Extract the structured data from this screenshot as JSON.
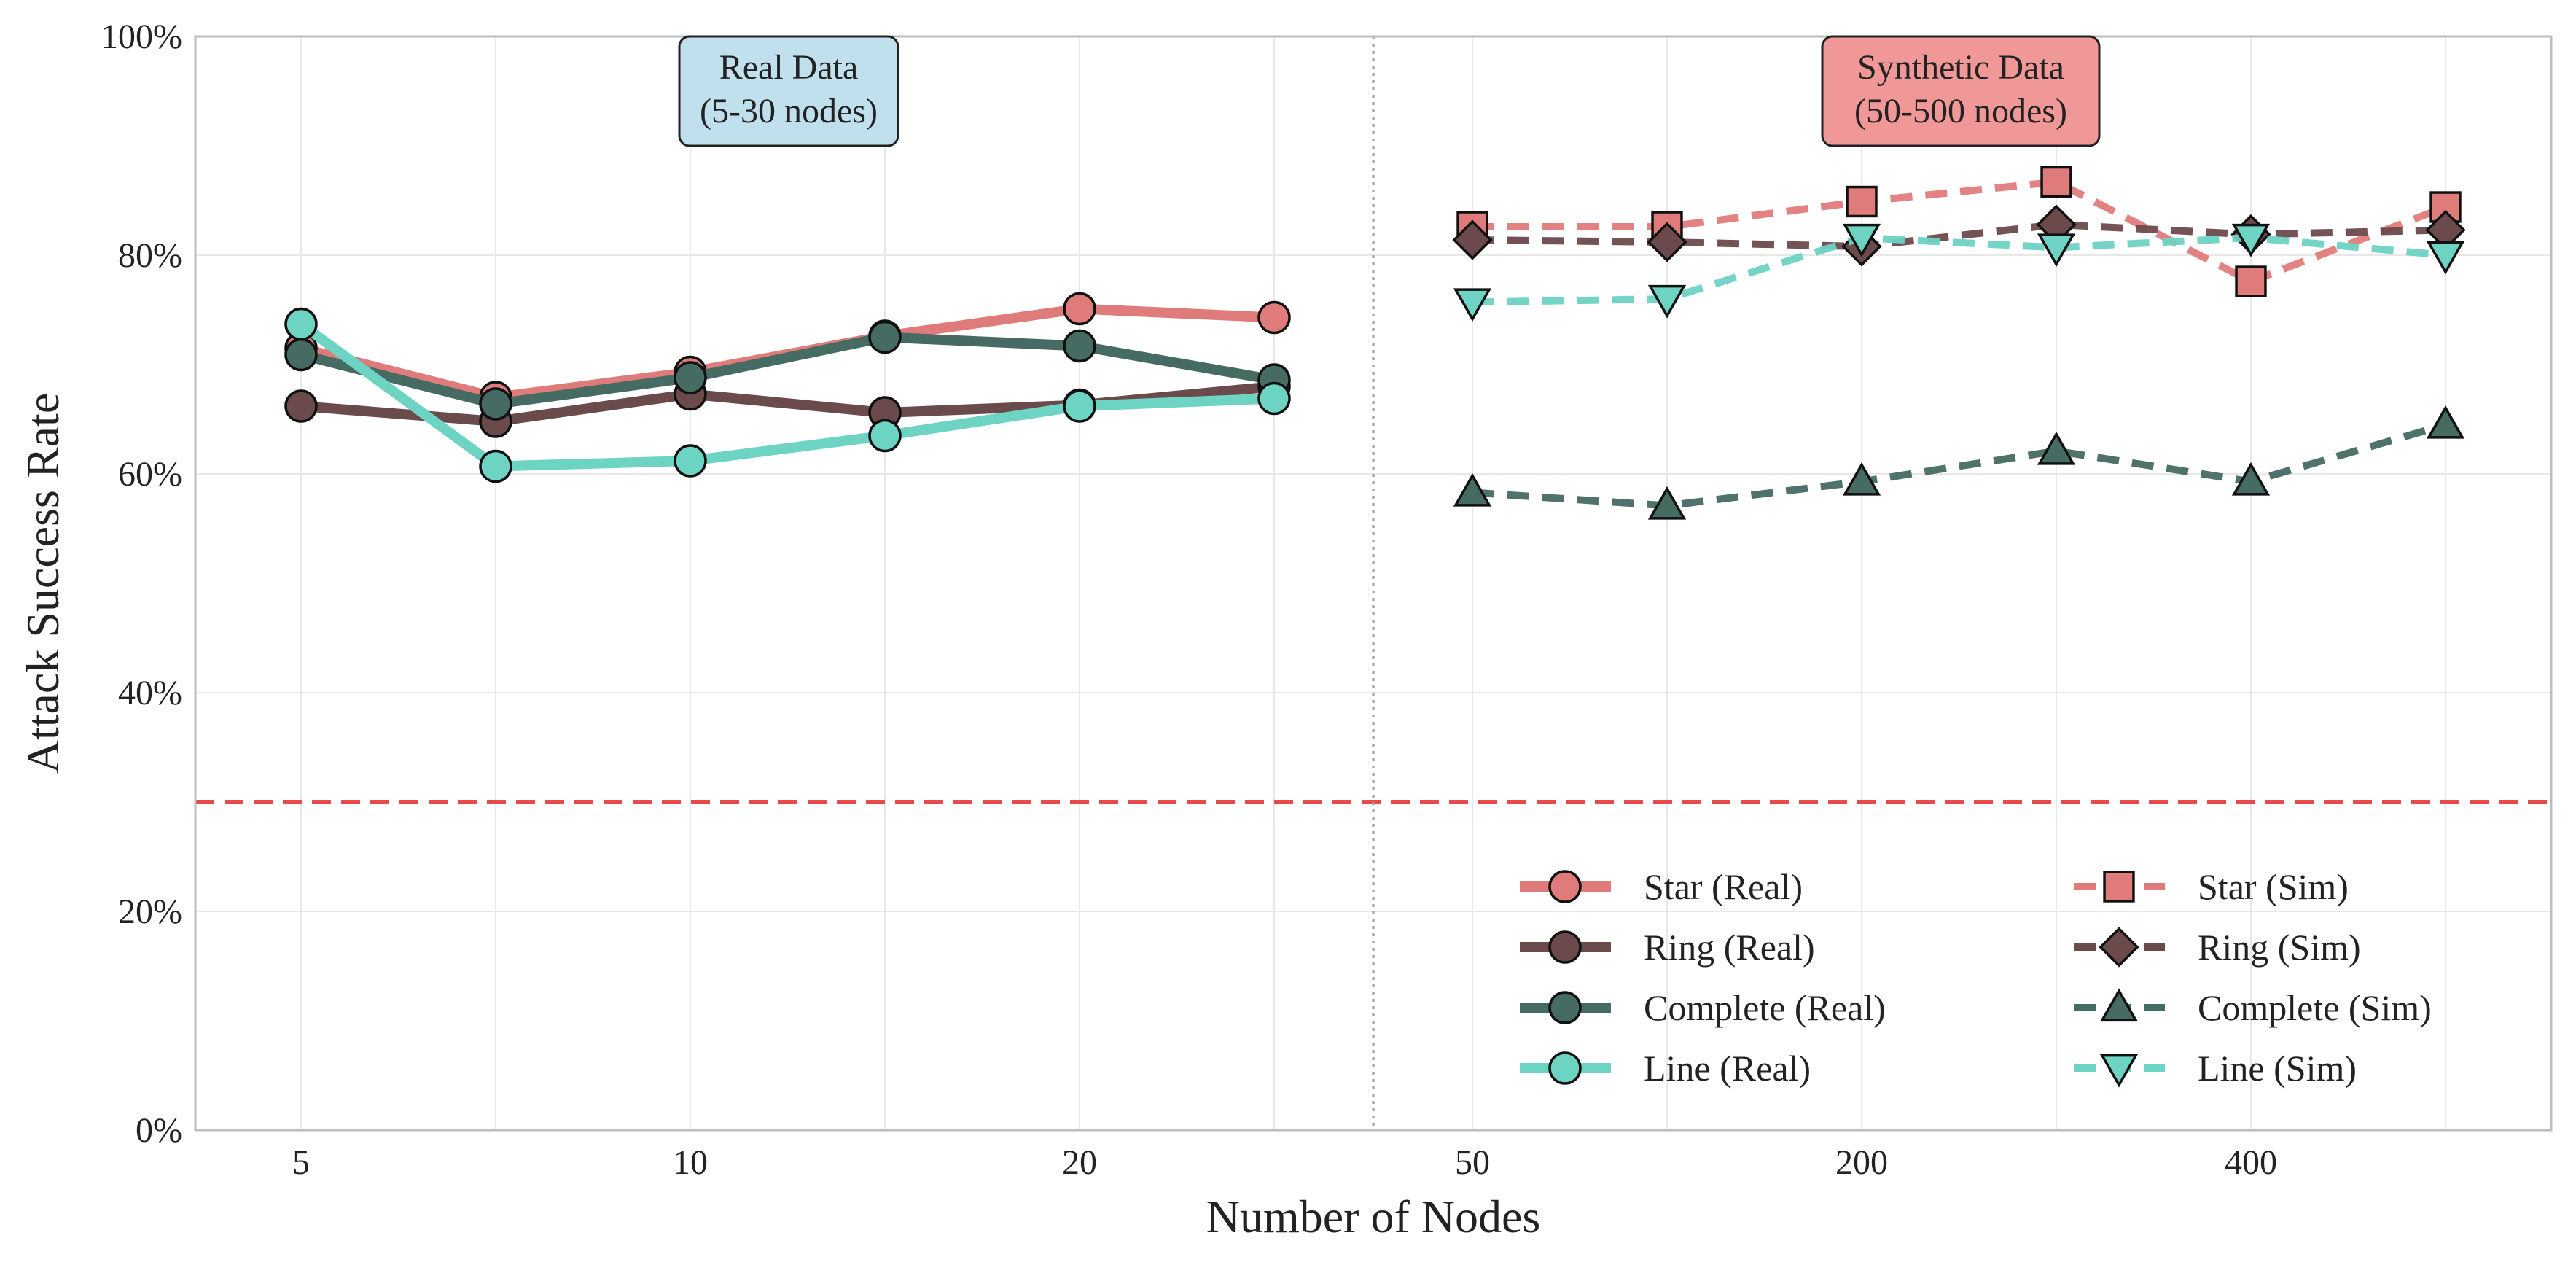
{
  "chart_data": {
    "type": "line",
    "xlabel": "Number of Nodes",
    "ylabel": "Attack Success Rate",
    "ylim": [
      0,
      100
    ],
    "y_ticks": [
      "0%",
      "20%",
      "40%",
      "60%",
      "80%",
      "100%"
    ],
    "grid": true,
    "legend_position": "bottom-right",
    "reference_line": {
      "value": 30,
      "color": "#e84a4a",
      "style": "dashed"
    },
    "panels": [
      {
        "label_lines": [
          "Real Data",
          "(5-30 nodes)"
        ],
        "box_color": "#bfe0ec",
        "x": [
          5,
          7,
          10,
          15,
          20,
          30
        ],
        "x_tick_labels": [
          "5",
          "",
          "10",
          "",
          "20",
          ""
        ],
        "series": [
          {
            "name": "Star (Real)",
            "color": "#e07b7b",
            "marker": "circle",
            "dash": false,
            "values": [
              71.5,
              67.0,
              69.3,
              72.6,
              75.1,
              74.3
            ]
          },
          {
            "name": "Ring (Real)",
            "color": "#6b4a4c",
            "marker": "circle",
            "dash": false,
            "values": [
              66.2,
              64.8,
              67.3,
              65.6,
              66.3,
              68.0
            ]
          },
          {
            "name": "Complete (Real)",
            "color": "#466b63",
            "marker": "circle",
            "dash": false,
            "values": [
              70.9,
              66.4,
              68.8,
              72.5,
              71.7,
              68.6
            ]
          },
          {
            "name": "Line (Real)",
            "color": "#6dd3c3",
            "marker": "circle",
            "dash": false,
            "values": [
              73.7,
              60.7,
              61.2,
              63.5,
              66.2,
              66.9
            ]
          }
        ]
      },
      {
        "label_lines": [
          "Synthetic Data",
          "(50-500 nodes)"
        ],
        "box_color": "#f09898",
        "x": [
          50,
          100,
          200,
          300,
          400,
          500
        ],
        "x_tick_labels": [
          "50",
          "",
          "200",
          "",
          "400",
          ""
        ],
        "series": [
          {
            "name": "Star (Sim)",
            "color": "#e07b7b",
            "marker": "square",
            "dash": true,
            "values": [
              82.6,
              82.6,
              84.9,
              86.7,
              77.6,
              84.4
            ]
          },
          {
            "name": "Ring (Sim)",
            "color": "#6b4a4c",
            "marker": "diamond",
            "dash": true,
            "values": [
              81.4,
              81.2,
              80.8,
              82.8,
              81.9,
              82.3
            ]
          },
          {
            "name": "Complete (Sim)",
            "color": "#466b63",
            "marker": "triangle-up",
            "dash": true,
            "values": [
              58.3,
              57.1,
              59.3,
              62.1,
              59.3,
              64.5
            ]
          },
          {
            "name": "Line (Sim)",
            "color": "#6dd3c3",
            "marker": "triangle-down",
            "dash": true,
            "values": [
              75.7,
              76.0,
              81.6,
              80.7,
              81.6,
              80.0
            ]
          }
        ]
      }
    ]
  }
}
